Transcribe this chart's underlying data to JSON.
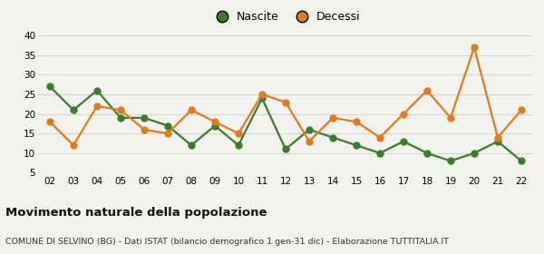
{
  "years": [
    "02",
    "03",
    "04",
    "05",
    "06",
    "07",
    "08",
    "09",
    "10",
    "11",
    "12",
    "13",
    "14",
    "15",
    "16",
    "17",
    "18",
    "19",
    "20",
    "21",
    "22"
  ],
  "nascite": [
    27,
    21,
    26,
    19,
    19,
    17,
    12,
    17,
    12,
    24,
    11,
    16,
    14,
    12,
    10,
    13,
    10,
    8,
    10,
    13,
    8
  ],
  "decessi": [
    18,
    12,
    22,
    21,
    16,
    15,
    21,
    18,
    15,
    25,
    23,
    13,
    19,
    18,
    14,
    20,
    26,
    19,
    37,
    14,
    21
  ],
  "nascite_color": "#3a7d2c",
  "decessi_color": "#e07b20",
  "background_color": "#f2f2ee",
  "grid_color": "#d0d0d0",
  "ylim": [
    5,
    40
  ],
  "yticks": [
    5,
    10,
    15,
    20,
    25,
    30,
    35,
    40
  ],
  "title": "Movimento naturale della popolazione",
  "subtitle": "COMUNE DI SELVINO (BG) - Dati ISTAT (bilancio demografico 1 gen-31 dic) - Elaborazione TUTTITALIA.IT",
  "legend_nascite": "Nascite",
  "legend_decessi": "Decessi",
  "marker_size": 5,
  "line_width": 1.6
}
